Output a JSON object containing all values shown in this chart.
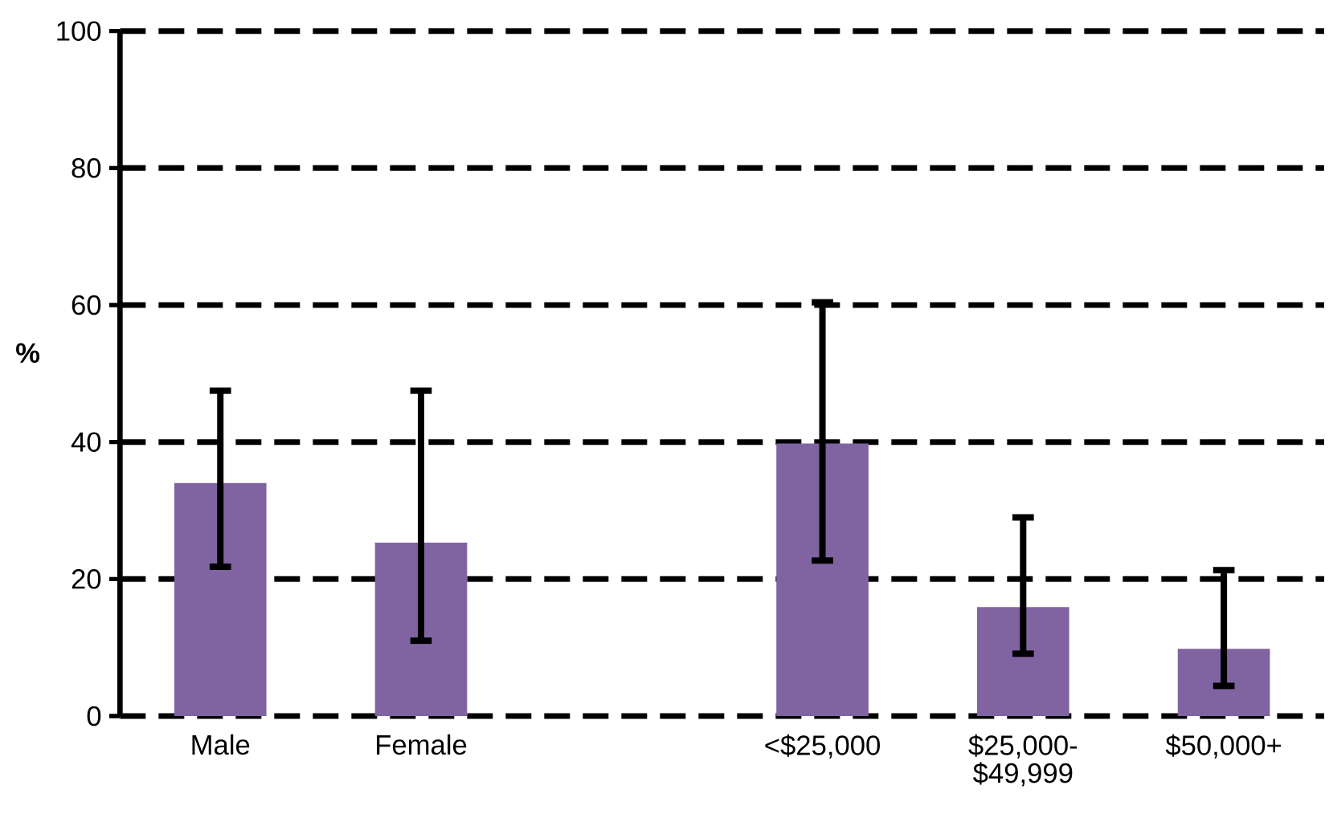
{
  "chart_data": {
    "type": "bar",
    "ylabel": "%",
    "categories": [
      "Male",
      "Female",
      null,
      "<$25,000",
      "$25,000-$49,999",
      "$50,000+"
    ],
    "values": [
      34,
      25.3,
      null,
      39.8,
      15.9,
      9.8
    ],
    "errors": [
      [
        21.8,
        47.5
      ],
      [
        11,
        47.5
      ],
      null,
      [
        22.7,
        60.4
      ],
      [
        9.1,
        29
      ],
      [
        4.4,
        21.3
      ]
    ],
    "color": "#8064a2",
    "ylim": [
      0,
      100
    ],
    "yticks": [
      0,
      20,
      40,
      60,
      80,
      100
    ],
    "grid": "y"
  }
}
